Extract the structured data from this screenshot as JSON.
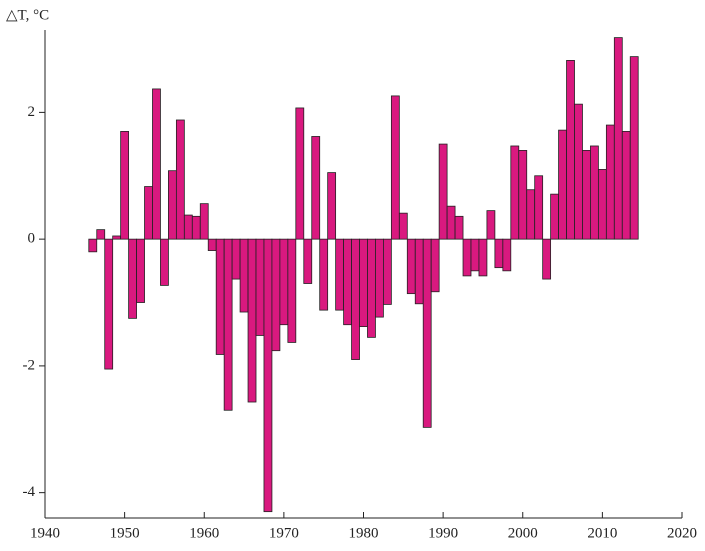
{
  "chart_data": {
    "type": "bar",
    "ylabel": "△T, °C",
    "x": [
      1946,
      1947,
      1948,
      1949,
      1950,
      1951,
      1952,
      1953,
      1954,
      1955,
      1956,
      1957,
      1958,
      1959,
      1960,
      1961,
      1962,
      1963,
      1964,
      1965,
      1966,
      1967,
      1968,
      1969,
      1970,
      1971,
      1972,
      1973,
      1974,
      1975,
      1976,
      1977,
      1978,
      1979,
      1980,
      1981,
      1982,
      1983,
      1984,
      1985,
      1986,
      1987,
      1988,
      1989,
      1990,
      1991,
      1992,
      1993,
      1994,
      1995,
      1996,
      1997,
      1998,
      1999,
      2000,
      2001,
      2002,
      2003,
      2004,
      2005,
      2006,
      2007,
      2008,
      2009,
      2010,
      2011,
      2012,
      2013,
      2014
    ],
    "values": [
      -0.2,
      0.15,
      -2.05,
      0.05,
      1.7,
      -1.25,
      -1.0,
      0.83,
      2.37,
      -0.73,
      1.08,
      1.88,
      0.38,
      0.36,
      0.56,
      -0.18,
      -1.82,
      -2.7,
      -0.63,
      -1.15,
      -2.57,
      -1.52,
      -4.3,
      -1.76,
      -1.35,
      -1.63,
      2.07,
      -0.7,
      1.62,
      -1.12,
      1.05,
      -1.12,
      -1.35,
      -1.9,
      -1.38,
      -1.55,
      -1.23,
      -1.03,
      2.26,
      0.41,
      -0.86,
      -1.02,
      -2.97,
      -0.83,
      1.5,
      0.52,
      0.36,
      -0.58,
      -0.5,
      -0.58,
      0.45,
      -0.45,
      -0.5,
      1.47,
      1.4,
      0.78,
      1.0,
      -0.63,
      0.71,
      1.72,
      2.82,
      2.13,
      1.4,
      1.47,
      1.1,
      1.8,
      3.18,
      1.7,
      2.88
    ],
    "color": "#d9197f",
    "xlim": [
      1940,
      2020
    ],
    "xticks": [
      1940,
      1950,
      1960,
      1970,
      1980,
      1990,
      2000,
      2010,
      2020
    ],
    "ylim": [
      -4.4,
      3.3
    ],
    "yticks": [
      -4,
      -2,
      0,
      2
    ]
  }
}
